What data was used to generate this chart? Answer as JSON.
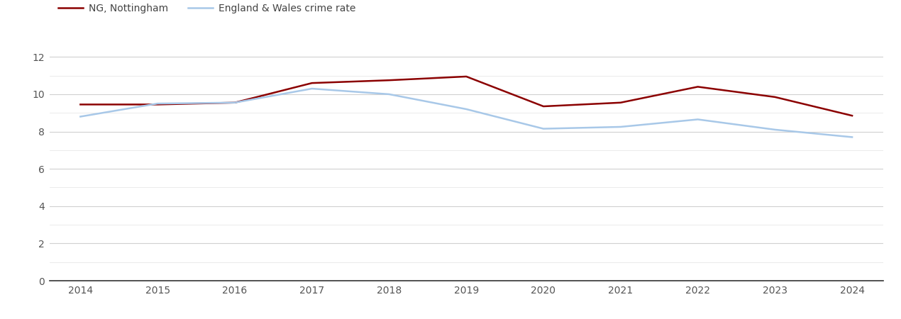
{
  "years": [
    2014,
    2015,
    2016,
    2017,
    2018,
    2019,
    2020,
    2021,
    2022,
    2023,
    2024
  ],
  "nottingham": [
    9.45,
    9.45,
    9.55,
    10.6,
    10.75,
    10.95,
    9.35,
    9.55,
    10.4,
    9.85,
    8.85
  ],
  "england_wales": [
    8.8,
    9.5,
    9.55,
    10.3,
    10.0,
    9.2,
    8.15,
    8.25,
    8.65,
    8.1,
    7.7
  ],
  "nottingham_color": "#8b0000",
  "england_wales_color": "#a8c8e8",
  "nottingham_label": "NG, Nottingham",
  "england_wales_label": "England & Wales crime rate",
  "ylim": [
    0,
    13
  ],
  "yticks_major": [
    0,
    2,
    4,
    6,
    8,
    10,
    12
  ],
  "yticks_minor": [
    1,
    3,
    5,
    7,
    9,
    11
  ],
  "xlim": [
    2013.6,
    2024.4
  ],
  "linewidth": 1.8,
  "background_color": "#ffffff",
  "grid_color_major": "#d0d0d0",
  "grid_color_minor": "#e8e8e8",
  "tick_fontsize": 10,
  "legend_fontsize": 10
}
